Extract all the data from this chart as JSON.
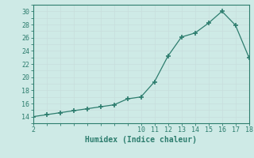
{
  "x": [
    2,
    3,
    4,
    5,
    6,
    7,
    8,
    9,
    10,
    11,
    12,
    13,
    14,
    15,
    16,
    17,
    18
  ],
  "y": [
    14,
    14.3,
    14.6,
    14.9,
    15.2,
    15.5,
    15.8,
    16.7,
    17.0,
    19.3,
    23.2,
    26.1,
    26.7,
    28.2,
    30.0,
    27.9,
    23.0
  ],
  "xlim": [
    2,
    18
  ],
  "ylim": [
    13,
    31
  ],
  "xticks": [
    2,
    10,
    11,
    12,
    13,
    14,
    15,
    16,
    17,
    18
  ],
  "yticks": [
    14,
    16,
    18,
    20,
    22,
    24,
    26,
    28,
    30
  ],
  "xlabel": "Humidex (Indice chaleur)",
  "line_color": "#2d7d6e",
  "marker_color": "#2d7d6e",
  "bg_color": "#ceeae6",
  "grid_color_minor": "#c8dedd",
  "grid_color_major": "#b8cecc",
  "tick_label_color": "#2d7d6e",
  "xlabel_color": "#2d7d6e"
}
